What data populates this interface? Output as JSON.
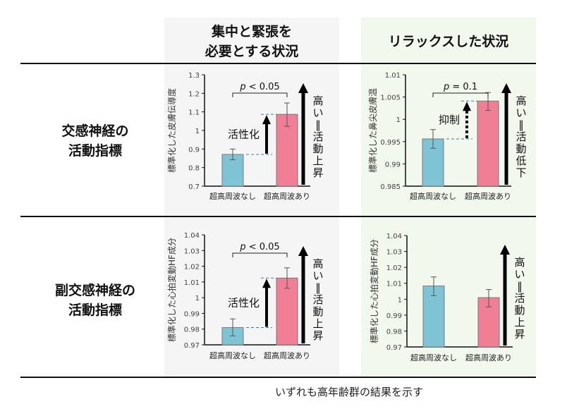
{
  "columns": [
    {
      "label": "集中と緊張を\n必要とする状況",
      "bg": "#f5f5f5"
    },
    {
      "label": "リラックスした状況",
      "bg": "#f3f8ee"
    }
  ],
  "rows": [
    {
      "label": "交感神経の\n活動指標"
    },
    {
      "label": "副交感神経の\n活動指標"
    }
  ],
  "footnote": "いずれも高年齢群の結果を示す",
  "colors": {
    "bar_without": "#7ec4d4",
    "bar_with": "#f07f95",
    "bar_border": "#7a7a7a",
    "dashed": "#3a7ea0"
  },
  "chart_data": [
    {
      "type": "bar",
      "title": "",
      "ylabel": "標準化した皮膚伝導度",
      "categories": [
        "超高周波なし",
        "超高周波あり"
      ],
      "values": [
        0.871,
        1.087
      ],
      "error_low": [
        0.842,
        1.022
      ],
      "error_high": [
        0.9,
        1.148
      ],
      "ylim": [
        0.7,
        1.3
      ],
      "yticks": [
        0.7,
        0.8,
        0.9,
        1.0,
        1.1,
        1.2,
        1.3
      ],
      "ytick_labels": [
        "0.7",
        "0.8",
        "0.9",
        "1",
        "1.1",
        "1.2",
        "1.3"
      ],
      "significance": {
        "label_italic": "p",
        "label_rest": " < 0.05"
      },
      "change_arrow": {
        "label": "活性化",
        "style": "solid"
      },
      "side_label": "高い＝活動上昇"
    },
    {
      "type": "bar",
      "title": "",
      "ylabel": "標準化した鼻尖皮膚温",
      "categories": [
        "超高周波なし",
        "超高周波あり"
      ],
      "values": [
        0.9956,
        1.0041
      ],
      "error_low": [
        0.9935,
        1.002
      ],
      "error_high": [
        0.9977,
        1.006
      ],
      "ylim": [
        0.985,
        1.01
      ],
      "yticks": [
        0.985,
        0.99,
        0.995,
        1.0,
        1.005,
        1.01
      ],
      "ytick_labels": [
        "0.985",
        "0.99",
        "0.995",
        "1",
        "1.005",
        "1.01"
      ],
      "significance": {
        "label_italic": "p",
        "label_rest": " = 0.1"
      },
      "change_arrow": {
        "label": "抑制",
        "style": "dotted"
      },
      "side_label": "高い＝活動低下"
    },
    {
      "type": "bar",
      "title": "",
      "ylabel": "標準化した心拍変動HF成分",
      "categories": [
        "超高周波なし",
        "超高周波あり"
      ],
      "values": [
        0.981,
        1.0125
      ],
      "error_low": [
        0.9757,
        1.006
      ],
      "error_high": [
        0.9865,
        1.019
      ],
      "ylim": [
        0.97,
        1.04
      ],
      "yticks": [
        0.97,
        0.98,
        0.99,
        1.0,
        1.01,
        1.02,
        1.03,
        1.04
      ],
      "ytick_labels": [
        "0.97",
        "0.98",
        "0.99",
        "1",
        "1.01",
        "1.02",
        "1.03",
        "1.04"
      ],
      "significance": {
        "label_italic": "p",
        "label_rest": " < 0.05"
      },
      "change_arrow": {
        "label": "活性化",
        "style": "solid"
      },
      "side_label": "高い＝活動上昇"
    },
    {
      "type": "bar",
      "title": "",
      "ylabel": "標準化した心拍変動HF成分",
      "categories": [
        "超高周波なし",
        "超高周波あり"
      ],
      "values": [
        1.0083,
        1.001
      ],
      "error_low": [
        1.0022,
        0.9952
      ],
      "error_high": [
        1.014,
        1.0061
      ],
      "ylim": [
        0.97,
        1.04
      ],
      "yticks": [
        0.97,
        0.98,
        0.99,
        1.0,
        1.01,
        1.02,
        1.03,
        1.04
      ],
      "ytick_labels": [
        "0.97",
        "0.98",
        "0.99",
        "1",
        "1.01",
        "1.02",
        "1.03",
        "1.04"
      ],
      "significance": null,
      "change_arrow": null,
      "side_label": "高い＝活動上昇"
    }
  ]
}
